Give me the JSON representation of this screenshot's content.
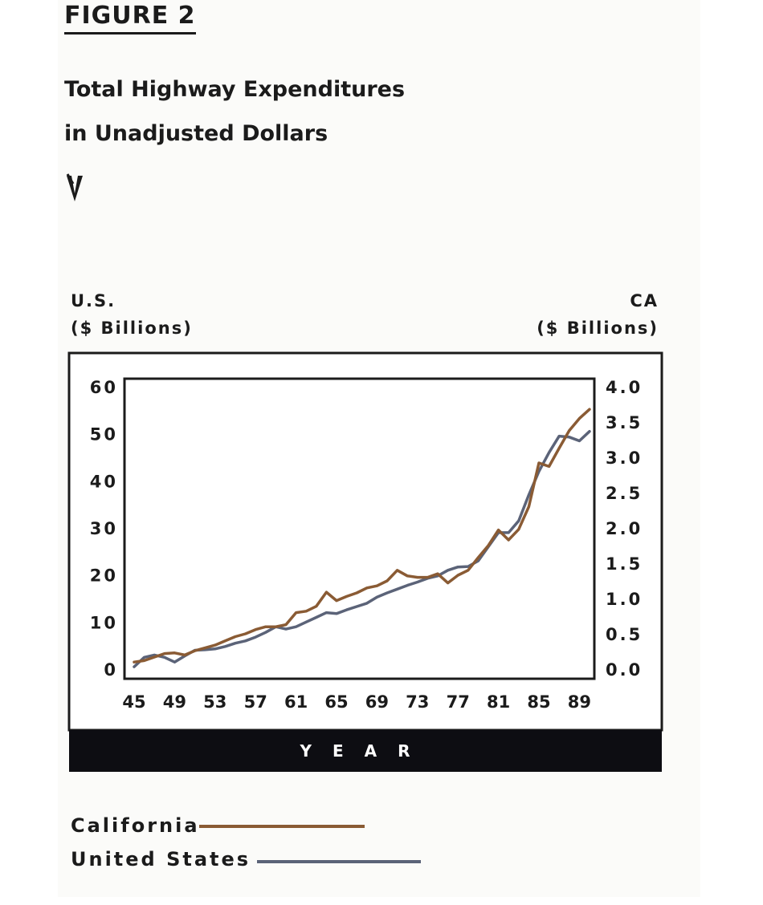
{
  "figure_label": "FIGURE 2",
  "title_line1": "Total Highway Expenditures",
  "title_line2": "in Unadjusted Dollars",
  "left_axis_title": [
    "U.S.",
    "($ Billions)"
  ],
  "right_axis_title": [
    "CA",
    "($ Billions)"
  ],
  "legend": [
    {
      "label": "California",
      "color": "#8a5b34"
    },
    {
      "label": "United States",
      "color": "#5b6378"
    }
  ],
  "colors": {
    "band": "#0d0d12",
    "band_text": "#ffffff",
    "frame": "#1b1b1b"
  },
  "chart_data": {
    "type": "line",
    "xlabel": "YEAR",
    "x_ticks": [
      "45",
      "49",
      "53",
      "57",
      "61",
      "65",
      "69",
      "73",
      "77",
      "81",
      "85",
      "89"
    ],
    "xlim": [
      45,
      90
    ],
    "y_left": {
      "label": "U.S. ($ Billions)",
      "lim": [
        0,
        60
      ],
      "ticks": [
        "0",
        "10",
        "20",
        "30",
        "40",
        "50",
        "60"
      ]
    },
    "y_right": {
      "label": "CA ($ Billions)",
      "lim": [
        0,
        4
      ],
      "ticks": [
        "0.0",
        "0.5",
        "1.0",
        "1.5",
        "2.0",
        "2.5",
        "3.0",
        "3.5",
        "4.0"
      ]
    },
    "series": [
      {
        "name": "California",
        "axis": "right",
        "x": [
          45,
          46,
          47,
          48,
          49,
          50,
          51,
          52,
          53,
          54,
          55,
          56,
          57,
          58,
          59,
          60,
          61,
          62,
          63,
          64,
          65,
          66,
          67,
          68,
          69,
          70,
          71,
          72,
          73,
          74,
          75,
          76,
          77,
          78,
          79,
          80,
          81,
          82,
          83,
          84,
          85,
          86,
          87,
          88,
          89,
          90
        ],
        "values": [
          0.1,
          0.12,
          0.17,
          0.22,
          0.23,
          0.2,
          0.26,
          0.3,
          0.34,
          0.4,
          0.46,
          0.5,
          0.56,
          0.6,
          0.6,
          0.63,
          0.8,
          0.82,
          0.89,
          1.09,
          0.97,
          1.03,
          1.08,
          1.15,
          1.18,
          1.25,
          1.4,
          1.32,
          1.3,
          1.3,
          1.35,
          1.22,
          1.33,
          1.4,
          1.58,
          1.75,
          1.97,
          1.83,
          1.98,
          2.3,
          2.92,
          2.87,
          3.13,
          3.38,
          3.55,
          3.68
        ]
      },
      {
        "name": "United States",
        "axis": "left",
        "x": [
          45,
          46,
          47,
          48,
          49,
          50,
          51,
          52,
          53,
          54,
          55,
          56,
          57,
          58,
          59,
          60,
          61,
          62,
          63,
          64,
          65,
          66,
          67,
          68,
          69,
          70,
          71,
          72,
          73,
          74,
          75,
          76,
          77,
          78,
          79,
          80,
          81,
          82,
          83,
          84,
          85,
          86,
          87,
          88,
          89,
          90
        ],
        "values": [
          0.5,
          2.5,
          3,
          2.5,
          1.5,
          2.8,
          4,
          4.1,
          4.3,
          4.8,
          5.5,
          6,
          6.8,
          7.8,
          9,
          8.5,
          9,
          10,
          11,
          12,
          11.8,
          12.6,
          13.3,
          14,
          15.3,
          16.2,
          17,
          17.8,
          18.5,
          19.3,
          19.8,
          21,
          21.7,
          21.8,
          23,
          26,
          29,
          29,
          31.5,
          37,
          42,
          46,
          49.5,
          49.3,
          48.5,
          50.5
        ]
      }
    ]
  }
}
